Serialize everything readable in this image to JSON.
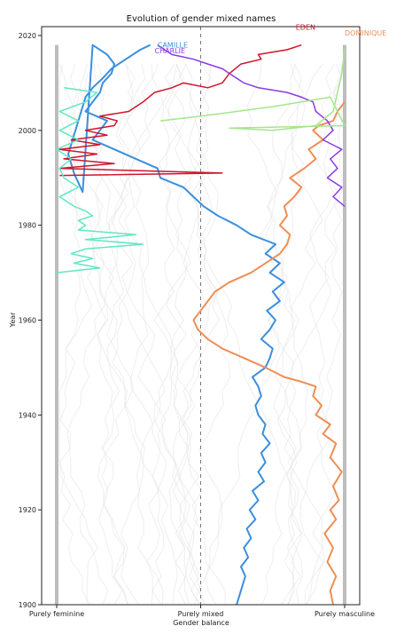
{
  "chart_data": {
    "type": "line",
    "title": "Evolution of gender mixed names",
    "xlabel": "Gender balance",
    "ylabel": "Year",
    "xlim": [
      -1,
      1
    ],
    "ylim": [
      1900,
      2020
    ],
    "grid": false,
    "x_ticks": [
      {
        "value": -1,
        "label": "Purely feminine"
      },
      {
        "value": 0,
        "label": "Purely mixed"
      },
      {
        "value": 1,
        "label": "Purely masculine"
      }
    ],
    "y_ticks": [
      1900,
      1920,
      1940,
      1960,
      1980,
      2000,
      2020
    ],
    "reference_line": {
      "x": 0,
      "style": "dashed",
      "color": "#777777"
    },
    "bounds_color": "#bdbdbd",
    "background_names_color": "#e6e6e6",
    "series": [
      {
        "name": "CAMILLE",
        "color": "#3b8fdc",
        "x": [
          0.25,
          0.27,
          0.29,
          0.31,
          0.28,
          0.33,
          0.3,
          0.35,
          0.32,
          0.38,
          0.34,
          0.4,
          0.36,
          0.44,
          0.4,
          0.45,
          0.42,
          0.48,
          0.43,
          0.45,
          0.4,
          0.38,
          0.42,
          0.4,
          0.36,
          0.45,
          0.48,
          0.5,
          0.42,
          0.48,
          0.52,
          0.46,
          0.55,
          0.5,
          0.58,
          0.48,
          0.55,
          0.45,
          0.52,
          0.35,
          0.25,
          0.12,
          0.02,
          -0.05,
          -0.12,
          -0.28,
          -0.3,
          -0.45,
          -0.6,
          -0.75,
          -0.7,
          -0.65,
          -0.8,
          -0.75,
          -0.7,
          -0.68,
          -0.62,
          -0.6,
          -0.65,
          -0.75,
          -0.82,
          -0.88,
          -0.9,
          -0.92,
          -0.9,
          -0.88,
          -0.86,
          -0.84,
          -0.82,
          -0.8,
          -0.75,
          -0.68,
          -0.62,
          -0.52,
          -0.42,
          -0.35
        ],
        "y": [
          1900,
          1902,
          1904,
          1906,
          1908,
          1910,
          1912,
          1914,
          1916,
          1918,
          1920,
          1922,
          1924,
          1926,
          1928,
          1930,
          1932,
          1934,
          1936,
          1938,
          1940,
          1942,
          1944,
          1946,
          1948,
          1950,
          1952,
          1954,
          1956,
          1958,
          1960,
          1962,
          1964,
          1966,
          1968,
          1970,
          1972,
          1974,
          1976,
          1978,
          1980,
          1982,
          1984,
          1986,
          1988,
          1990,
          1992,
          1994,
          1996,
          1998,
          2000,
          2002,
          2004,
          2006,
          2008,
          2010,
          2012,
          2014,
          2016,
          2018,
          1987,
          1991,
          1993,
          1995,
          1997,
          1999,
          2001,
          2003,
          2005,
          2007,
          2009,
          2011,
          2013,
          2015,
          2017,
          2018
        ],
        "width": 2
      },
      {
        "name": "DOMINIQUE",
        "color": "#ee8e55",
        "x": [
          0.92,
          0.9,
          0.94,
          0.88,
          0.92,
          0.86,
          0.94,
          0.9,
          0.96,
          0.92,
          0.98,
          0.9,
          0.94,
          0.85,
          0.9,
          0.8,
          0.84,
          0.78,
          0.8,
          0.7,
          0.58,
          0.45,
          0.3,
          0.15,
          0.05,
          -0.02,
          -0.05,
          0.0,
          0.05,
          0.1,
          0.2,
          0.35,
          0.45,
          0.55,
          0.6,
          0.62,
          0.55,
          0.6,
          0.58,
          0.65,
          0.7,
          0.62,
          0.72,
          0.8,
          0.75,
          0.85,
          0.78,
          0.82,
          0.92,
          0.95,
          1.0
        ],
        "y": [
          1900,
          1903,
          1906,
          1909,
          1912,
          1915,
          1918,
          1920,
          1922,
          1925,
          1928,
          1931,
          1934,
          1936,
          1938,
          1940,
          1942,
          1944,
          1946,
          1947,
          1948,
          1950,
          1952,
          1954,
          1956,
          1958,
          1960,
          1962,
          1964,
          1966,
          1968,
          1970,
          1972,
          1974,
          1976,
          1978,
          1980,
          1982,
          1984,
          1986,
          1988,
          1990,
          1992,
          1994,
          1996,
          1998,
          2000,
          2001,
          2002,
          2004,
          2006
        ],
        "width": 2
      },
      {
        "name": "EDEN",
        "color": "#d0142c",
        "x": [
          -0.98,
          0.15,
          -0.98,
          -0.6,
          -0.95,
          -0.72,
          -0.98,
          -0.7,
          -0.9,
          -0.65,
          -0.8,
          -0.6,
          -0.58,
          -0.7,
          -0.5,
          -0.45,
          -0.4,
          -0.32,
          -0.2,
          -0.12,
          0.05,
          0.15,
          0.2,
          0.28,
          0.42,
          0.4,
          0.6,
          0.7
        ],
        "y": [
          1990.5,
          1991,
          1992,
          1993,
          1994,
          1995,
          1996,
          1997,
          1998,
          1999,
          2000,
          2001,
          2002,
          2003,
          2004,
          2005,
          2006,
          2008,
          2009,
          2010,
          2009,
          2010,
          2012,
          2014,
          2015,
          2016,
          2017,
          2018
        ],
        "width": 1.5
      },
      {
        "name": "CHARLIE",
        "color": "#8a3be2",
        "x": [
          1.0,
          0.92,
          0.98,
          0.88,
          0.95,
          0.9,
          0.98,
          0.85,
          0.92,
          0.88,
          0.8,
          0.78,
          0.7,
          0.6,
          0.4,
          0.3,
          0.25,
          0.2,
          0.15,
          0.05,
          -0.05,
          -0.2,
          -0.3
        ],
        "y": [
          1984,
          1986,
          1988,
          1990,
          1992,
          1994,
          1996,
          1998,
          2000,
          2002,
          2004,
          2006,
          2007,
          2008,
          2009,
          2010,
          2011,
          2012,
          2013,
          2014,
          2015,
          2016,
          2018
        ],
        "width": 1.5
      },
      {
        "name": "",
        "color": "#5fe8c4",
        "x": [
          -1.0,
          -0.7,
          -0.88,
          -0.75,
          -0.9,
          -0.8,
          -0.4,
          -0.8,
          -0.45,
          -0.85,
          -0.8,
          -0.85,
          -0.75,
          -0.8,
          -0.88,
          -0.98,
          -0.85,
          -0.95,
          -0.98,
          -0.9,
          -1.0,
          -0.85,
          -0.98,
          -0.85,
          -0.98,
          -0.8,
          -0.72,
          -0.95
        ],
        "y": [
          1970,
          1971,
          1972,
          1973,
          1974,
          1975,
          1976,
          1977,
          1978,
          1979,
          1980,
          1981,
          1982,
          1983,
          1984,
          1986,
          1988,
          1990,
          1992,
          1994,
          1996,
          1998,
          2000,
          2002,
          2004,
          2006,
          2008,
          2009
        ],
        "width": 1.5
      },
      {
        "name": "",
        "color": "#a5e68a",
        "x": [
          -0.28,
          0.0,
          0.25,
          0.5,
          0.7,
          0.9,
          1.0,
          0.2,
          0.5,
          0.8,
          0.92,
          0.95,
          0.98,
          1.0
        ],
        "y": [
          2002,
          2003,
          2004,
          2005,
          2006,
          2007,
          2001,
          2000.5,
          2000,
          2001,
          2004,
          2008,
          2012,
          2017
        ],
        "width": 1.5
      }
    ],
    "annotations": [
      {
        "text": "CAMILLE",
        "color": "#3b8fdc",
        "x": -0.3,
        "y": 2017.5
      },
      {
        "text": "CHARLIE",
        "color": "#8a3be2",
        "x": -0.32,
        "y": 2016.3
      },
      {
        "text": "EDEN",
        "color": "#d0142c",
        "x": 0.66,
        "y": 2021.2
      },
      {
        "text": "DOMINIQUE",
        "color": "#ee8e55",
        "x": 1.0,
        "y": 2020.0
      }
    ]
  }
}
